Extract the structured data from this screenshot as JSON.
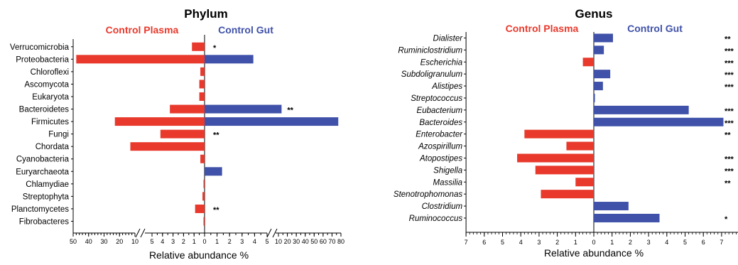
{
  "colors": {
    "plasma": "#e8392c",
    "gut": "#3f51a8",
    "axis": "#000000"
  },
  "chart_data": [
    {
      "type": "bar",
      "orientation": "horizontal-diverging",
      "title": "Phylum",
      "left_label": "Control Plasma",
      "right_label": "Control Gut",
      "xlabel": "Relative abundance %",
      "axis_segments": {
        "left_high": {
          "range": [
            10,
            50
          ],
          "ticks": [
            "50",
            "40",
            "30",
            "20",
            "10"
          ]
        },
        "left_low": {
          "range": [
            0,
            5
          ],
          "ticks": [
            "5",
            "4",
            "3",
            "2",
            "1",
            "0"
          ]
        },
        "right_low": {
          "range": [
            0,
            5
          ],
          "ticks": [
            "1",
            "2",
            "3",
            "4",
            "5"
          ]
        },
        "right_high": {
          "range": [
            10,
            80
          ],
          "ticks": [
            "10",
            "20",
            "30",
            "40",
            "50",
            "60",
            "70",
            "80"
          ]
        }
      },
      "categories": [
        "Verrucomicrobia",
        "Proteobacteria",
        "Chloroflexi",
        "Ascomycota",
        "Eukaryota",
        "Bacteroidetes",
        "Firmicutes",
        "Fungi",
        "Chordata",
        "Cyanobacteria",
        "Euryarchaeota",
        "Chlamydiae",
        "Streptophyta",
        "Planctomycetes",
        "Fibrobacteres"
      ],
      "series": [
        {
          "name": "Control Plasma",
          "values": [
            1.2,
            48,
            0.4,
            0.5,
            0.5,
            3.3,
            23,
            4.2,
            13,
            0.4,
            0,
            0.1,
            0.2,
            0.9,
            0.1
          ]
        },
        {
          "name": "Control Gut",
          "values": [
            0,
            3.9,
            0,
            0,
            0,
            13.5,
            77,
            0,
            0,
            0,
            1.4,
            0,
            0,
            0,
            0
          ]
        }
      ],
      "significance": [
        "*",
        "",
        "",
        "",
        "",
        "**",
        "",
        "**",
        "",
        "",
        "",
        "",
        "",
        "**",
        ""
      ]
    },
    {
      "type": "bar",
      "orientation": "horizontal-diverging",
      "title": "Genus",
      "left_label": "Control Plasma",
      "right_label": "Control Gut",
      "xlabel": "Relative abundance %",
      "xlim": [
        -7,
        8
      ],
      "ticks": [
        "7",
        "6",
        "5",
        "4",
        "3",
        "2",
        "1",
        "0",
        "1",
        "2",
        "3",
        "4",
        "5",
        "6",
        "7",
        "8"
      ],
      "categories": [
        "Dialister",
        "Ruminiclostridium",
        "Escherichia",
        "Subdoligranulum",
        "Alistipes",
        "Streptococcus",
        "Eubacterium",
        "Bacteroides",
        "Enterobacter",
        "Azospirillum",
        "Atopostipes",
        "Shigella",
        "Massilia",
        "Stenotrophomonas",
        "Clostridium",
        "Ruminococcus"
      ],
      "series": [
        {
          "name": "Control Plasma",
          "values": [
            0,
            0,
            0.6,
            0,
            0,
            0,
            0,
            0,
            3.8,
            1.5,
            4.2,
            3.2,
            1.0,
            2.9,
            0,
            0
          ]
        },
        {
          "name": "Control Gut",
          "values": [
            1.05,
            0.55,
            0,
            0.9,
            0.5,
            0.06,
            5.2,
            7.1,
            0,
            0,
            0,
            0,
            0,
            0,
            1.9,
            3.6
          ]
        }
      ],
      "significance": [
        "**",
        "***",
        "***",
        "***",
        "***",
        "",
        "***",
        "***",
        "**",
        "",
        "***",
        "***",
        "**",
        "",
        "",
        "*"
      ]
    }
  ]
}
